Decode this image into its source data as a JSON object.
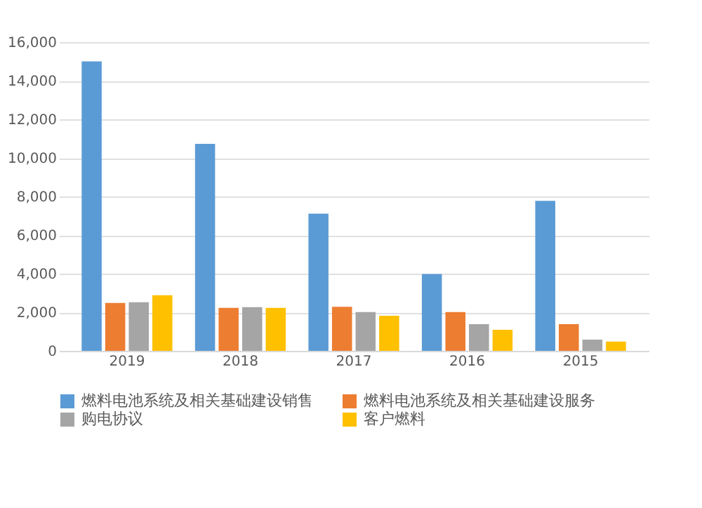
{
  "chart_data": {
    "type": "bar",
    "categories": [
      "2019",
      "2018",
      "2017",
      "2016",
      "2015"
    ],
    "series": [
      {
        "name": "燃料电池系统及相关基础建设销售",
        "color": "#5b9bd5",
        "values": [
          15000,
          10730,
          7110,
          3980,
          7770
        ]
      },
      {
        "name": "燃料电池系统及相关基础建设服务",
        "color": "#ed7d31",
        "values": [
          2480,
          2230,
          2280,
          2010,
          1380
        ]
      },
      {
        "name": "购电协议",
        "color": "#a5a5a5",
        "values": [
          2520,
          2260,
          2010,
          1380,
          580
        ]
      },
      {
        "name": "客户燃料",
        "color": "#ffc000",
        "values": [
          2880,
          2230,
          1820,
          1090,
          480
        ]
      }
    ],
    "ylim": [
      0,
      16000
    ],
    "yticks": [
      {
        "value": 0,
        "label": "0"
      },
      {
        "value": 2000,
        "label": "2,000"
      },
      {
        "value": 4000,
        "label": "4,000"
      },
      {
        "value": 6000,
        "label": "6,000"
      },
      {
        "value": 8000,
        "label": "8,000"
      },
      {
        "value": 10000,
        "label": "10,000"
      },
      {
        "value": 12000,
        "label": "12,000"
      },
      {
        "value": 14000,
        "label": "14,000"
      },
      {
        "value": 16000,
        "label": "16,000"
      }
    ],
    "grid": "y",
    "legend": "bottom"
  }
}
